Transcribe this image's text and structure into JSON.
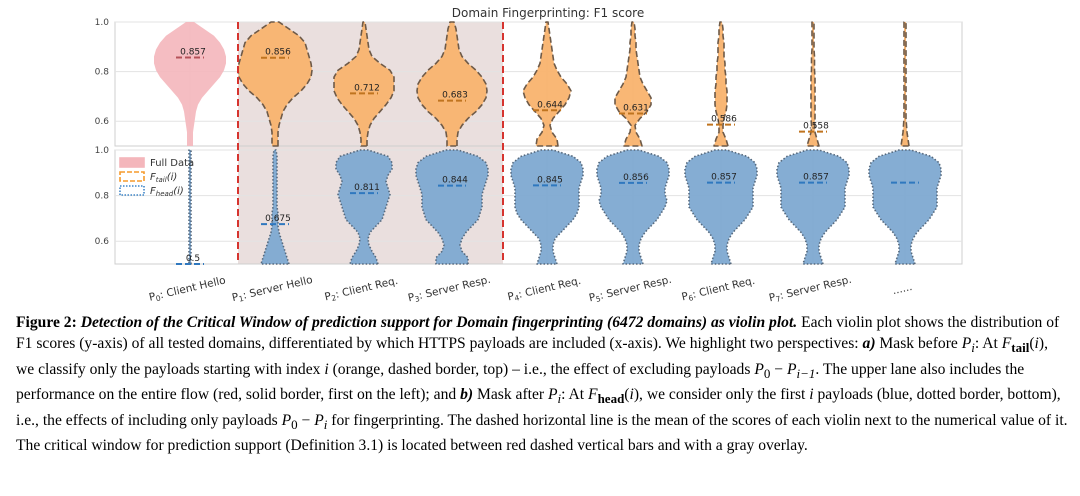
{
  "chart_data": {
    "type": "violin",
    "title": "Domain Fingerprinting: F1 score",
    "categories": [
      {
        "p": "P",
        "sub": "0",
        "label": ": Client Hello"
      },
      {
        "p": "P",
        "sub": "1",
        "label": ": Server Hello"
      },
      {
        "p": "P",
        "sub": "2",
        "label": ": Client Req."
      },
      {
        "p": "P",
        "sub": "3",
        "label": ": Server Resp."
      },
      {
        "p": "P",
        "sub": "4",
        "label": ": Client Req."
      },
      {
        "p": "P",
        "sub": "5",
        "label": ": Server Resp."
      },
      {
        "p": "P",
        "sub": "6",
        "label": ": Client Req."
      },
      {
        "p": "P",
        "sub": "7",
        "label": ": Server Resp."
      },
      {
        "p": "",
        "sub": "",
        "label": "......"
      }
    ],
    "yticks": [
      "1.0",
      "0.8",
      "0.6"
    ],
    "ylim": [
      0.5,
      1.0
    ],
    "critical_window": {
      "from": "P1",
      "to": "P3"
    },
    "legend": {
      "position": "top-left of bottom panel",
      "items": [
        {
          "text": "Full Data",
          "style": "solid",
          "color": "#f4b6bb"
        },
        {
          "base": "F",
          "sub": "tail",
          "arg": "(i)",
          "style": "dashed",
          "color": "#f59a2c"
        },
        {
          "base": "F",
          "sub": "head",
          "arg": "(i)",
          "style": "dotted",
          "color": "#3f86c8"
        }
      ]
    },
    "panels": [
      {
        "name": "Full Data / F_tail(i)",
        "means": [
          0.857,
          0.856,
          0.712,
          0.683,
          0.644,
          0.631,
          0.586,
          0.558,
          null
        ],
        "mean_labels": [
          "0.857",
          "0.856",
          "0.712",
          "0.683",
          "0.644",
          "0.631",
          "0.586",
          "0.558",
          ""
        ],
        "colors": [
          "#f4b6bb",
          "#f9b36e",
          "#f9b36e",
          "#f9b36e",
          "#f9b36e",
          "#f9b36e",
          "#f9b36e",
          "#f9b36e",
          "#f9b36e"
        ]
      },
      {
        "name": "F_head(i)",
        "means": [
          0.5,
          0.675,
          0.811,
          0.844,
          0.845,
          0.856,
          0.857,
          0.857,
          0.857
        ],
        "mean_labels": [
          "0.5",
          "0.675",
          "0.811",
          "0.844",
          "0.845",
          "0.856",
          "0.857",
          "0.857",
          ""
        ],
        "colors": [
          "#7ea9d1",
          "#7ea9d1",
          "#7ea9d1",
          "#7ea9d1",
          "#7ea9d1",
          "#7ea9d1",
          "#7ea9d1",
          "#7ea9d1",
          "#7ea9d1"
        ]
      }
    ],
    "line_colors": {
      "tail_border": "#6e5a48",
      "head_border": "#56697d",
      "tail_mean": "#c0741f",
      "head_mean": "#2f78bf",
      "full_mean": "#b5525a",
      "critical": "#d6342f",
      "overlay": "#d8c4c2"
    }
  },
  "caption": {
    "fig_label": "Figure 2: ",
    "title": "Detection of the Critical Window of prediction support for Domain fingerprinting (6472 domains) as violin plot.",
    "t1": " Each violin plot shows the distribution of F1 scores (y-axis) of all tested domains, differentiated by which HTTPS payloads are included (x-axis). We highlight two perspectives: ",
    "a": "a)",
    "t2": " Mask before ",
    "t3": ": At ",
    "t4": ", we classify only the payloads starting with index ",
    "t5": " (orange, dashed border, top) – i.e., the effect of excluding payloads ",
    "t6": ". The upper lane also includes the performance on the entire flow (red, solid border, first on the left); and ",
    "b": "b)",
    "t7": " Mask after ",
    "t8": ": At ",
    "t9": ", we consider only the first ",
    "t10": " payloads (blue, dotted border, bottom), i.e., the effects of including only payloads ",
    "t11": " for fingerprinting. The dashed horizontal line is the mean of the scores of each violin next to the numerical value of it. The critical window for prediction support (Definition 3.1) is located between red dashed vertical bars and with a gray overlay."
  }
}
